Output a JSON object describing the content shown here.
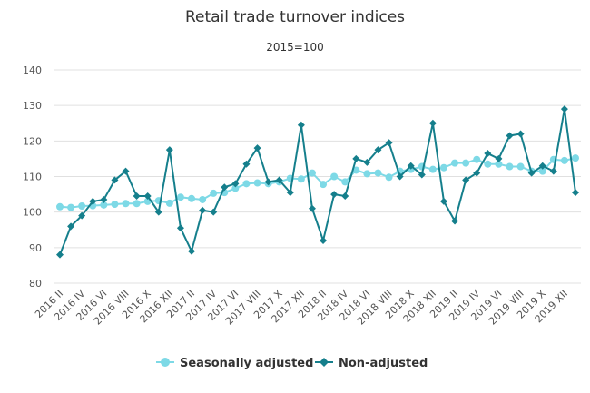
{
  "chart_data": {
    "type": "line",
    "title": "Retail trade turnover indices",
    "subtitle": "2015=100",
    "categories": [
      "2016 II",
      null,
      "2016 IV",
      null,
      "2016 VI",
      null,
      "2016 VIII",
      null,
      "2016 X",
      null,
      "2016 XII",
      null,
      "2017 II",
      null,
      "2017 IV",
      null,
      "2017 VI",
      null,
      "2017 VIII",
      null,
      "2017 X",
      null,
      "2017 XII",
      null,
      "2018 II",
      null,
      "2018 IV",
      null,
      "2018 VI",
      null,
      "2018 VIII",
      null,
      "2018 X",
      null,
      "2018 XII",
      null,
      "2019 II",
      null,
      "2019 IV",
      null,
      "2019 VI",
      null,
      "2019 VIII",
      null,
      "2019 X",
      null,
      "2019 XII",
      null
    ],
    "series": [
      {
        "name": "Seasonally adjusted",
        "color": "#7dd9e6",
        "marker": "circle",
        "values": [
          101.5,
          101.3,
          101.7,
          101.8,
          102,
          102.2,
          102.4,
          102.4,
          103,
          103.2,
          102.5,
          104.2,
          103.8,
          103.5,
          105.3,
          105.5,
          106.7,
          108,
          108.2,
          108,
          108.5,
          109.5,
          109.3,
          111,
          107.8,
          110,
          108.5,
          111.8,
          110.8,
          111,
          109.8,
          111.5,
          112,
          112.8,
          112,
          112.5,
          113.8,
          113.8,
          114.8,
          113.5,
          113.5,
          112.8,
          112.8,
          111.5,
          111.5,
          114.8,
          114.5,
          115.2
        ]
      },
      {
        "name": "Non-adjusted",
        "color": "#157f8c",
        "marker": "diamond",
        "values": [
          88,
          96,
          99,
          103,
          103.5,
          109,
          111.5,
          104.5,
          104.5,
          100,
          117.5,
          95.5,
          89,
          100.5,
          100,
          107,
          108,
          113.5,
          118,
          108.5,
          109,
          105.5,
          124.5,
          101,
          92,
          105,
          104.5,
          115,
          114,
          117.5,
          119.5,
          110,
          113,
          110.5,
          125,
          103,
          97.5,
          109,
          111,
          116.5,
          115,
          121.5,
          122,
          111,
          113,
          111.5,
          129,
          105.5
        ]
      }
    ],
    "ylim": [
      80,
      140
    ],
    "yticks": [
      80,
      90,
      100,
      110,
      120,
      130,
      140
    ],
    "grid": true
  }
}
